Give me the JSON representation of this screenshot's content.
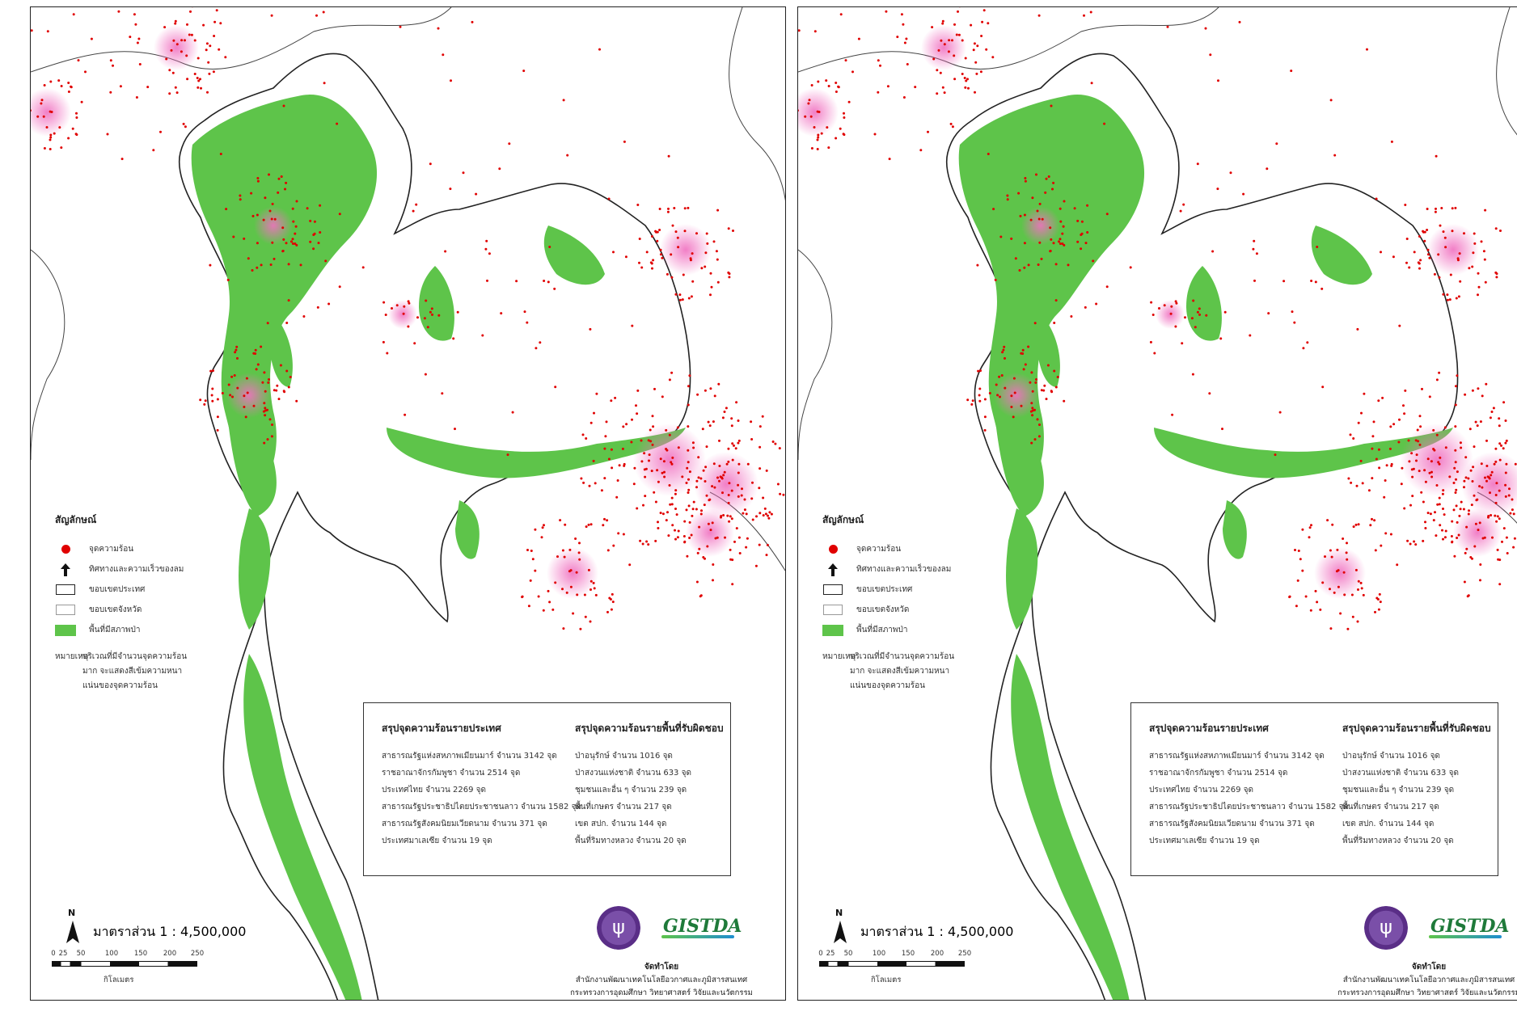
{
  "colors": {
    "hotspot": "#e00000",
    "hotspot_glow": "#f070c0",
    "forest": "#5ec44a",
    "border": "#222222"
  },
  "legend": {
    "title": "สัญลักษณ์",
    "items": [
      {
        "icon": "hotspot-dot-icon",
        "label": "จุดความร้อน"
      },
      {
        "icon": "north-arrow-icon",
        "label": "ทิศทางและความเร็วของลม"
      },
      {
        "icon": "country-border-icon",
        "label": "ขอบเขตประเทศ"
      },
      {
        "icon": "province-border-icon",
        "label": "ขอบเขตจังหวัด"
      },
      {
        "icon": "forest-area-icon",
        "label": "พื้นที่มีสภาพป่า"
      }
    ],
    "note_label": "หมายเหตุ",
    "note_text": "บริเวณที่มีจำนวนจุดความร้อนมาก จะแสดงสีเข้มความหนาแน่นของจุดความร้อน"
  },
  "summary_country": {
    "title": "สรุปจุดความร้อนรายประเทศ",
    "rows": [
      "สาธารณรัฐแห่งสหภาพเมียนมาร์   จำนวน 3142 จุด",
      "ราชอาณาจักรกัมพูชา   จำนวน 2514 จุด",
      "ประเทศไทย   จำนวน 2269 จุด",
      "สาธารณรัฐประชาธิปไตยประชาชนลาว   จำนวน 1582 จุด",
      "สาธารณรัฐสังคมนิยมเวียดนาม   จำนวน 371 จุด",
      "ประเทศมาเลเซีย   จำนวน 19 จุด"
    ]
  },
  "summary_area": {
    "title": "สรุปจุดความร้อนรายพื้นที่รับผิดชอบ",
    "rows": [
      "ป่าอนุรักษ์   จำนวน 1016 จุด",
      "ป่าสงวนแห่งชาติ   จำนวน 633 จุด",
      "ชุมชนและอื่น ๆ   จำนวน 239 จุด",
      "พื้นที่เกษตร   จำนวน 217 จุด",
      "เขต สปก.   จำนวน 144 จุด",
      "พื้นที่ริมทางหลวง   จำนวน 20 จุด"
    ]
  },
  "scale": {
    "north": "N",
    "ratio": "มาตราส่วน  1 : 4,500,000",
    "ticks": [
      "0",
      "25",
      "50",
      "100",
      "150",
      "200",
      "250"
    ],
    "unit": "กิโลเมตร"
  },
  "credit": {
    "logo_text": "GISTDA",
    "title": "จัดทำโดย",
    "line1": "สำนักงานพัฒนาเทคโนโลยีอวกาศและภูมิสารสนเทศ",
    "line2": "กระทรวงการอุดมศึกษา วิทยาศาสตร์ วิจัยและนวัตกรรม"
  }
}
